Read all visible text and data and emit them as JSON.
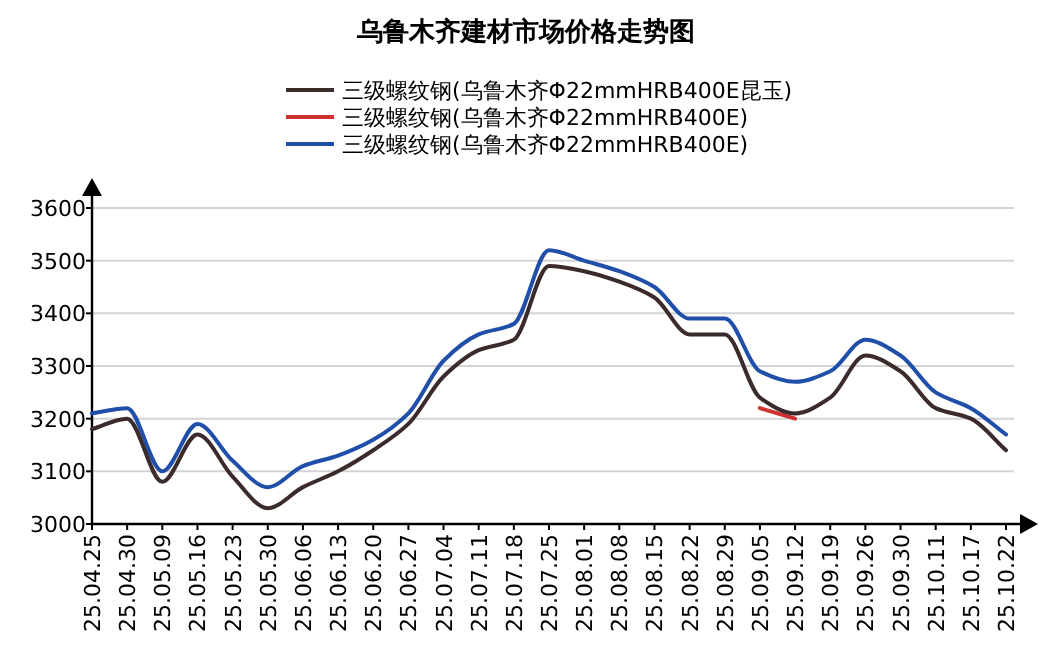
{
  "chart_data": {
    "type": "line",
    "title": "乌鲁木齐建材市场价格走势图",
    "categories": [
      "25.04.25",
      "25.04.30",
      "25.05.09",
      "25.05.16",
      "25.05.23",
      "25.05.30",
      "25.06.06",
      "25.06.13",
      "25.06.20",
      "25.06.27",
      "25.07.04",
      "25.07.11",
      "25.07.18",
      "25.07.25",
      "25.08.01",
      "25.08.08",
      "25.08.15",
      "25.08.22",
      "25.08.29",
      "25.09.05",
      "25.09.12",
      "25.09.19",
      "25.09.26",
      "25.09.30",
      "25.10.11",
      "25.10.17",
      "25.10.22"
    ],
    "series": [
      {
        "name": "三级螺纹钢(乌鲁木齐Φ22mmHRB400E昆玉)",
        "color": "#3b2b2b",
        "values": [
          3180,
          3200,
          3080,
          3170,
          3090,
          3030,
          3070,
          3100,
          3140,
          3190,
          3280,
          3330,
          3350,
          3490,
          3480,
          3460,
          3430,
          3360,
          3360,
          3240,
          3210,
          3240,
          3320,
          3290,
          3220,
          3200,
          3140
        ]
      },
      {
        "name": "三级螺纹钢(乌鲁木齐Φ22mmHRB400E)",
        "color": "#d03030",
        "values": [
          null,
          null,
          null,
          null,
          null,
          null,
          null,
          null,
          null,
          null,
          null,
          null,
          null,
          null,
          null,
          null,
          null,
          null,
          null,
          3220,
          3200,
          null,
          null,
          null,
          null,
          null,
          null
        ]
      },
      {
        "name": "三级螺纹钢(乌鲁木齐Φ22mmHRB400E)",
        "color": "#1f4fa8",
        "values": [
          3210,
          3220,
          3100,
          3190,
          3120,
          3070,
          3110,
          3130,
          3160,
          3210,
          3310,
          3360,
          3380,
          3520,
          3500,
          3480,
          3450,
          3390,
          3390,
          3290,
          3270,
          3290,
          3350,
          3320,
          3250,
          3220,
          3170
        ]
      }
    ],
    "ylim": [
      3000,
      3600
    ],
    "yticks": [
      3000,
      3100,
      3200,
      3300,
      3400,
      3500,
      3600
    ],
    "grid": "y",
    "legend": "top",
    "marker": "none",
    "line_style": "solid"
  }
}
